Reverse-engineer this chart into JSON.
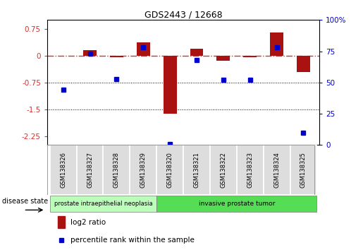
{
  "title": "GDS2443 / 12668",
  "samples": [
    "GSM138326",
    "GSM138327",
    "GSM138328",
    "GSM138329",
    "GSM138320",
    "GSM138321",
    "GSM138322",
    "GSM138323",
    "GSM138324",
    "GSM138325"
  ],
  "log2_ratio": [
    0.0,
    0.15,
    -0.05,
    0.38,
    -1.62,
    0.2,
    -0.15,
    -0.05,
    0.65,
    -0.45
  ],
  "percentile_rank": [
    44,
    73,
    53,
    78,
    1,
    68,
    52,
    52,
    78,
    10
  ],
  "ylim_left": [
    -2.5,
    1.0
  ],
  "ylim_right": [
    0,
    100
  ],
  "yticks_left": [
    0.75,
    0.0,
    -0.75,
    -1.5,
    -2.25
  ],
  "yticks_right": [
    100,
    75,
    50,
    25,
    0
  ],
  "hlines": [
    -0.75,
    -1.5
  ],
  "bar_color": "#aa1111",
  "dot_color": "#0000cc",
  "ref_line_color": "#cc3333",
  "group1_label": "prostate intraepithelial neoplasia",
  "group2_label": "invasive prostate tumor",
  "group1_indices": [
    0,
    1,
    2,
    3
  ],
  "group2_indices": [
    4,
    5,
    6,
    7,
    8,
    9
  ],
  "group1_color": "#bbffbb",
  "group2_color": "#55dd55",
  "disease_state_label": "disease state",
  "legend_bar_label": "log2 ratio",
  "legend_dot_label": "percentile rank within the sample",
  "bar_width": 0.5
}
